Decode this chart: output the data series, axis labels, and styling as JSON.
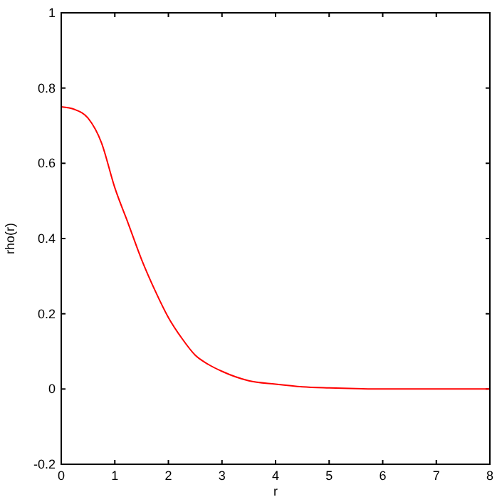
{
  "chart_data": {
    "type": "line",
    "xlabel": "r",
    "ylabel": "rho(r)",
    "x": [
      0,
      0.25,
      0.5,
      0.75,
      1,
      1.25,
      1.5,
      1.75,
      2,
      2.25,
      2.5,
      2.75,
      3,
      3.5,
      4,
      4.5,
      5,
      5.5,
      6,
      7,
      8
    ],
    "series": [
      {
        "color": "#ff0000",
        "values": [
          0.75,
          0.743,
          0.72,
          0.655,
          0.535,
          0.44,
          0.344,
          0.262,
          0.19,
          0.135,
          0.09,
          0.065,
          0.047,
          0.022,
          0.013,
          0.006,
          0.003,
          0.001,
          0,
          0,
          0
        ]
      }
    ],
    "xlim": [
      0,
      8
    ],
    "xticks": [
      0,
      1,
      2,
      3,
      4,
      5,
      6,
      7,
      8
    ],
    "ylim": [
      -0.2,
      1
    ],
    "yticks": [
      -0.2,
      0,
      0.2,
      0.4,
      0.6,
      0.8,
      1
    ],
    "grid": false,
    "marker": "none",
    "line_style": "solid"
  }
}
